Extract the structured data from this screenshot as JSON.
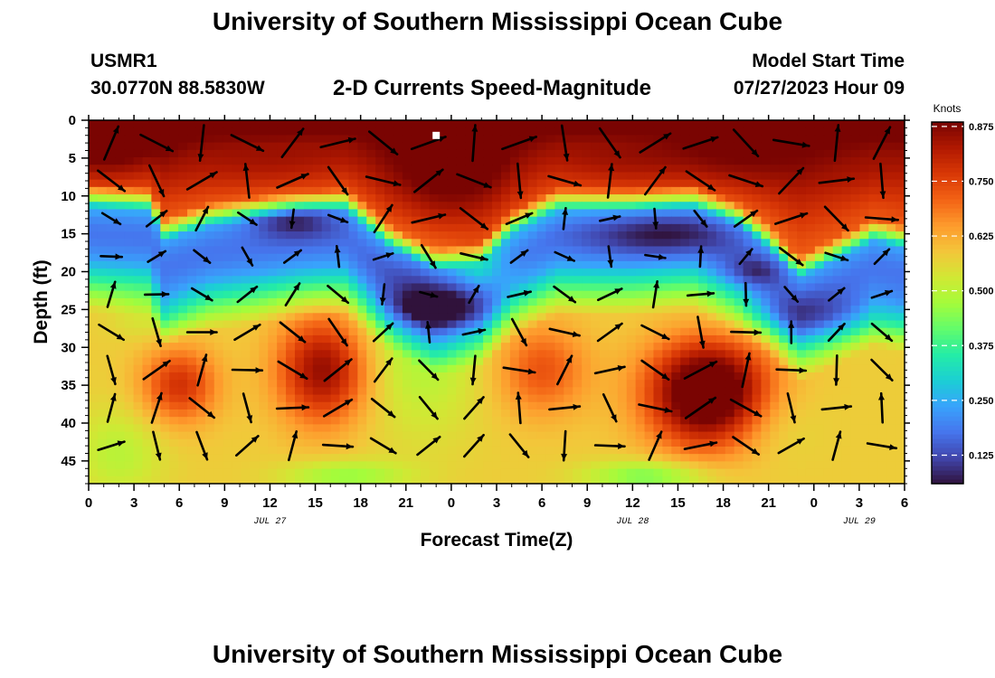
{
  "header": {
    "title": "University of Southern Mississippi Ocean Cube",
    "station_id": "USMR1",
    "station_coords": "30.0770N  88.5830W",
    "subtitle": "2-D Currents Speed-Magnitude",
    "model_start_label": "Model Start Time",
    "model_start_value": "07/27/2023 Hour 09"
  },
  "footer": {
    "title": "University of Southern Mississippi Ocean Cube"
  },
  "colors": {
    "arrow": "#000000",
    "marker": "#ffffff",
    "colormap": [
      "#30123b",
      "#4145ab",
      "#4675ed",
      "#39a2fc",
      "#1bcfd4",
      "#24eca6",
      "#61fc6c",
      "#a4fc3b",
      "#d1e834",
      "#f3c63a",
      "#fe9b2d",
      "#f36315",
      "#d93806",
      "#b11901",
      "#7a0402"
    ]
  },
  "chart_data": {
    "type": "heatmap",
    "title": "2-D Currents Speed-Magnitude",
    "xlabel": "Forecast Time(Z)",
    "ylabel": "Depth (ft)",
    "x_range_hours": [
      0,
      54
    ],
    "y_range_ft": [
      0,
      48
    ],
    "x_ticks": [
      {
        "hour": 0,
        "label": "0"
      },
      {
        "hour": 3,
        "label": "3"
      },
      {
        "hour": 6,
        "label": "6"
      },
      {
        "hour": 9,
        "label": "9"
      },
      {
        "hour": 12,
        "label": "12"
      },
      {
        "hour": 15,
        "label": "15"
      },
      {
        "hour": 18,
        "label": "18"
      },
      {
        "hour": 21,
        "label": "21"
      },
      {
        "hour": 24,
        "label": "0"
      },
      {
        "hour": 27,
        "label": "3"
      },
      {
        "hour": 30,
        "label": "6"
      },
      {
        "hour": 33,
        "label": "9"
      },
      {
        "hour": 36,
        "label": "12"
      },
      {
        "hour": 39,
        "label": "15"
      },
      {
        "hour": 42,
        "label": "18"
      },
      {
        "hour": 45,
        "label": "21"
      },
      {
        "hour": 48,
        "label": "0"
      },
      {
        "hour": 51,
        "label": "3"
      },
      {
        "hour": 54,
        "label": "6"
      }
    ],
    "date_labels": [
      {
        "hour": 12,
        "label": "JUL 27"
      },
      {
        "hour": 36,
        "label": "JUL 28"
      },
      {
        "hour": 51,
        "label": "JUL 29"
      }
    ],
    "y_ticks": [
      0,
      5,
      10,
      15,
      20,
      25,
      30,
      35,
      40,
      45
    ],
    "colorbar": {
      "label": "Knots",
      "range": [
        0.06,
        0.885
      ],
      "ticks": [
        0.125,
        0.25,
        0.375,
        0.5,
        0.625,
        0.75,
        0.875
      ],
      "tick_labels": [
        "0.125",
        "0.250",
        "0.375",
        "0.500",
        "0.625",
        "0.750",
        "0.875"
      ]
    },
    "speed_model": {
      "surface_layer": [
        {
          "h": 0,
          "bottom": 8.5
        },
        {
          "h": 4,
          "bottom": 9
        },
        {
          "h": 5,
          "bottom": 13
        },
        {
          "h": 8,
          "bottom": 11
        },
        {
          "h": 14,
          "bottom": 9.5
        },
        {
          "h": 17,
          "bottom": 9
        },
        {
          "h": 20,
          "bottom": 14
        },
        {
          "h": 23,
          "bottom": 17
        },
        {
          "h": 26,
          "bottom": 16
        },
        {
          "h": 28,
          "bottom": 12
        },
        {
          "h": 31,
          "bottom": 9
        },
        {
          "h": 36,
          "bottom": 9
        },
        {
          "h": 40,
          "bottom": 8.5
        },
        {
          "h": 43,
          "bottom": 11
        },
        {
          "h": 45,
          "bottom": 14
        },
        {
          "h": 47,
          "bottom": 18
        },
        {
          "h": 49,
          "bottom": 16
        },
        {
          "h": 52,
          "bottom": 13
        },
        {
          "h": 54,
          "bottom": 14
        }
      ],
      "blobs": [
        {
          "h": 1,
          "d": 2,
          "rh": 4,
          "rd": 5,
          "v": 0.95
        },
        {
          "h": 6,
          "d": 2,
          "rh": 3,
          "rd": 4,
          "v": 0.8
        },
        {
          "h": 12,
          "d": 3,
          "rh": 6,
          "rd": 5,
          "v": 0.85
        },
        {
          "h": 24,
          "d": 4,
          "rh": 4,
          "rd": 8,
          "v": 0.95
        },
        {
          "h": 35,
          "d": 3,
          "rh": 5,
          "rd": 5,
          "v": 0.85
        },
        {
          "h": 43,
          "d": 3,
          "rh": 6,
          "rd": 5,
          "v": 0.9
        },
        {
          "h": 51,
          "d": 3,
          "rh": 3,
          "rd": 4,
          "v": 0.85
        },
        {
          "h": 2,
          "d": 44,
          "rh": 3,
          "rd": 6,
          "v": -0.08
        },
        {
          "h": 4,
          "d": 26,
          "rh": 2.5,
          "rd": 3,
          "v": -0.05
        },
        {
          "h": 22,
          "d": 29,
          "rh": 4,
          "rd": 12,
          "v": -0.1
        },
        {
          "h": 45,
          "d": 40,
          "rh": 3,
          "rd": 5,
          "v": -0.05
        },
        {
          "h": 6,
          "d": 35,
          "rh": 2.5,
          "rd": 5,
          "v": 0.2
        },
        {
          "h": 15.5,
          "d": 33,
          "rh": 3,
          "rd": 7,
          "v": 0.28
        },
        {
          "h": 30,
          "d": 33,
          "rh": 3,
          "rd": 6,
          "v": 0.15
        },
        {
          "h": 41,
          "d": 36,
          "rh": 4,
          "rd": 7,
          "v": 0.42
        },
        {
          "h": 13.5,
          "d": 13,
          "rh": 3,
          "rd": 2.5,
          "v": -0.15
        },
        {
          "h": 38,
          "d": 15,
          "rh": 5,
          "rd": 3,
          "v": -0.12
        },
        {
          "h": 44,
          "d": 20,
          "rh": 2,
          "rd": 2,
          "v": -0.1
        },
        {
          "h": 23,
          "d": 25,
          "rh": 3,
          "rd": 2.5,
          "v": -0.15
        },
        {
          "h": 48,
          "d": 26,
          "rh": 6,
          "rd": 3,
          "v": -0.1
        },
        {
          "h": 26,
          "d": 20,
          "rh": 2,
          "rd": 3,
          "v": 0.1
        },
        {
          "h": 37,
          "d": 47,
          "rh": 4,
          "rd": 2,
          "v": -0.15
        },
        {
          "h": 17,
          "d": 47,
          "rh": 4,
          "rd": 2,
          "v": -0.12
        }
      ]
    },
    "arrow_hours": [
      1.5,
      4.5,
      7.5,
      10.5,
      13.5,
      16.5,
      19.5,
      22.5,
      25.5,
      28.5,
      31.5,
      34.5,
      37.5,
      40.5,
      43.5,
      46.5,
      49.5,
      52.5
    ],
    "arrow_depths": [
      3,
      8,
      13,
      18,
      23,
      28,
      33,
      38,
      43
    ],
    "arrow_speed_scale_knots": 0.9,
    "marker": {
      "hour": 23,
      "depth": 2
    }
  }
}
